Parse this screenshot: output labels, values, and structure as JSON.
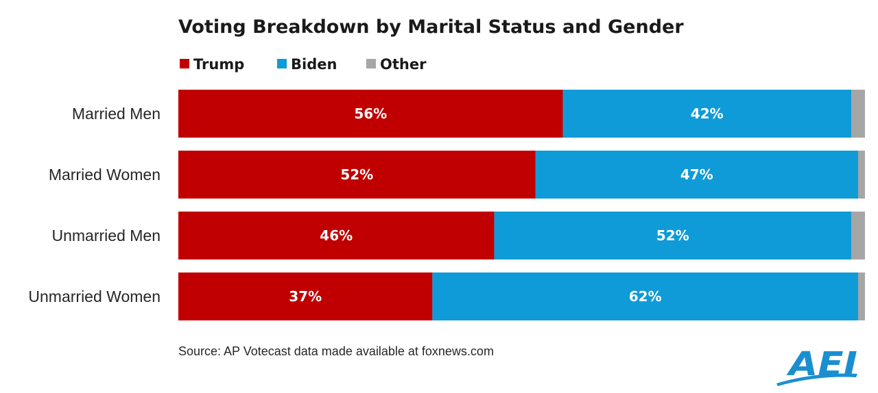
{
  "chart_data": {
    "type": "bar",
    "orientation": "horizontal",
    "stacked": true,
    "title": "Voting Breakdown by Marital Status and Gender",
    "categories": [
      "Married Men",
      "Married Women",
      "Unmarried Men",
      "Unmarried Women"
    ],
    "series": [
      {
        "name": "Trump",
        "values": [
          56,
          52,
          46,
          37
        ],
        "labels": [
          "56%",
          "52%",
          "46%",
          "37%"
        ],
        "color": "#c00000"
      },
      {
        "name": "Biden",
        "values": [
          42,
          47,
          52,
          62
        ],
        "labels": [
          "42%",
          "47%",
          "52%",
          "62%"
        ],
        "color": "#0f9bd7"
      },
      {
        "name": "Other",
        "values": [
          2,
          1,
          2,
          1
        ],
        "labels": [
          "",
          "",
          "",
          ""
        ],
        "color": "#a6a6a6"
      }
    ],
    "xlim": [
      0,
      100
    ],
    "grid": false,
    "legend": "top-left",
    "source": "Source: AP Votecast data made available at foxnews.com"
  },
  "logo": {
    "text": "AEI",
    "color": "#1a8fd0"
  }
}
